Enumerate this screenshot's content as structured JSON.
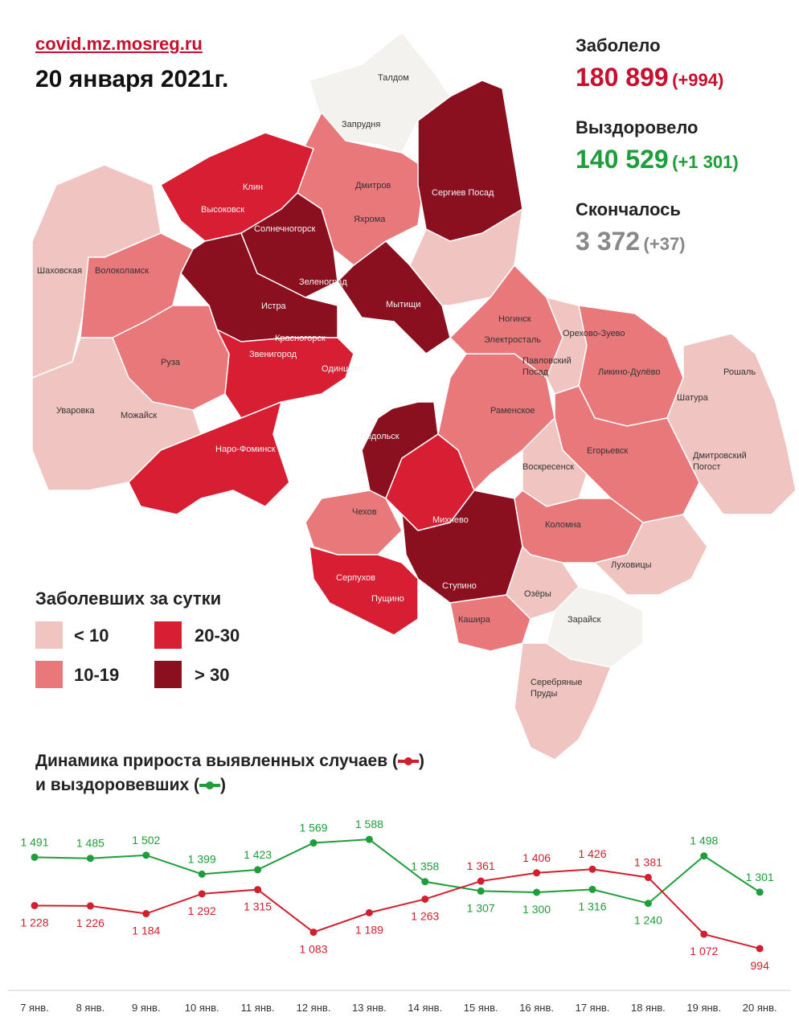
{
  "header": {
    "source": "covid.mz.mosreg.ru",
    "date": "20 января 2021г."
  },
  "stats": {
    "infected_label": "Заболело",
    "infected_total": "180 899",
    "infected_delta": "(+994)",
    "recovered_label": "Выздоровело",
    "recovered_total": "140 529",
    "recovered_delta": "(+1 301)",
    "died_label": "Скончалось",
    "died_total": "3 372",
    "died_delta": "(+37)",
    "colors": {
      "infected": "#c8102e",
      "recovered": "#1e9e3a",
      "died": "#888888"
    }
  },
  "legend": {
    "title": "Заболевших за сутки",
    "items": [
      {
        "label": "< 10",
        "color": "#f0c4c0"
      },
      {
        "label": "10-19",
        "color": "#e8787a"
      },
      {
        "label": "20-30",
        "color": "#d81e32"
      },
      {
        "label": "> 30",
        "color": "#8a1020"
      }
    ]
  },
  "map": {
    "places": [
      "Талдом",
      "Запрудня",
      "Дмитров",
      "Яхрома",
      "Сергиев Посад",
      "Клин",
      "Высоковск",
      "Солнечногорск",
      "Шаховская",
      "Волоколамск",
      "Зеленоград",
      "Истра",
      "Мытищи",
      "Красногорск",
      "Звенигород",
      "Одинцово",
      "Руза",
      "Ногинск",
      "Электросталь",
      "Орехово-Зуево",
      "Павловский Посад",
      "Ликино-Дулёво",
      "Рошаль",
      "Шатура",
      "Уваровка",
      "Можайск",
      "Раменское",
      "Наро-Фоминск",
      "Подольск",
      "Егорьевск",
      "Воскресенск",
      "Дмитровский Погост",
      "Чехов",
      "Михнево",
      "Коломна",
      "Луховицы",
      "Серпухов",
      "Пущино",
      "Ступино",
      "Озёры",
      "Кашира",
      "Зарайск",
      "Серебряные Пруды"
    ]
  },
  "chart_title": {
    "line1": "Динамика прироста выявленных случаев (",
    "line1_end": ")",
    "line2": "и выздоровевших (",
    "line2_end": ")"
  },
  "chart_data": {
    "type": "line",
    "categories": [
      "7 янв.",
      "8 янв.",
      "9 янв.",
      "10 янв.",
      "11 янв.",
      "12 янв.",
      "13 янв.",
      "14 янв.",
      "15 янв.",
      "16 янв.",
      "17 янв.",
      "18 янв.",
      "19 янв.",
      "20 янв."
    ],
    "series": [
      {
        "key": "recovered",
        "color": "#1e9e3a",
        "values": [
          1491,
          1485,
          1502,
          1399,
          1423,
          1569,
          1588,
          1358,
          1307,
          1300,
          1316,
          1240,
          1498,
          1301
        ],
        "labels": [
          "1 491",
          "1 485",
          "1 502",
          "1 399",
          "1 423",
          "1 569",
          "1 588",
          "1 358",
          "1 307",
          "1 300",
          "1 316",
          "1 240",
          "1 498",
          "1 301"
        ]
      },
      {
        "key": "infected",
        "color": "#d11f2e",
        "values": [
          1228,
          1226,
          1184,
          1292,
          1315,
          1083,
          1189,
          1263,
          1361,
          1406,
          1426,
          1381,
          1072,
          994
        ],
        "labels": [
          "1 228",
          "1 226",
          "1 184",
          "1 292",
          "1 315",
          "1 083",
          "1 189",
          "1 263",
          "1 361",
          "1 406",
          "1 426",
          "1 381",
          "1 072",
          "994"
        ]
      }
    ],
    "label_position": {
      "recovered": [
        "above",
        "above",
        "above",
        "above",
        "above",
        "above",
        "above",
        "above",
        "below",
        "below",
        "below",
        "below",
        "above",
        "above"
      ],
      "infected": [
        "below",
        "below",
        "below",
        "below",
        "below",
        "below",
        "below",
        "below",
        "above",
        "above",
        "above",
        "above",
        "below",
        "below"
      ]
    }
  }
}
